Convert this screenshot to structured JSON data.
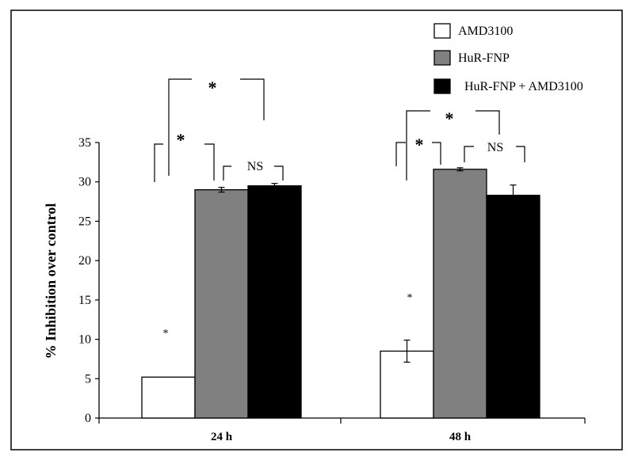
{
  "chart_data": {
    "type": "bar",
    "categories": [
      "24 h",
      "48 h"
    ],
    "series": [
      {
        "name": "AMD3100",
        "color": "#ffffff",
        "values": [
          5.2,
          8.5
        ],
        "errors": [
          0,
          1.4
        ]
      },
      {
        "name": "HuR-FNP",
        "color": "#808080",
        "values": [
          29.0,
          31.6
        ],
        "errors": [
          0.3,
          0.2
        ]
      },
      {
        "name": "HuR-FNP + AMD3100",
        "color": "#000000",
        "values": [
          29.5,
          28.3
        ],
        "errors": [
          0.3,
          1.3
        ]
      }
    ],
    "ylabel": "% Inhibition over control",
    "xlabel": "",
    "ylim": [
      0,
      35
    ],
    "yticks": [
      0,
      5,
      10,
      15,
      20,
      25,
      30,
      35
    ],
    "grid": false,
    "legend_position": "top-right",
    "annotations": {
      "star": "*",
      "ns": "NS"
    }
  }
}
